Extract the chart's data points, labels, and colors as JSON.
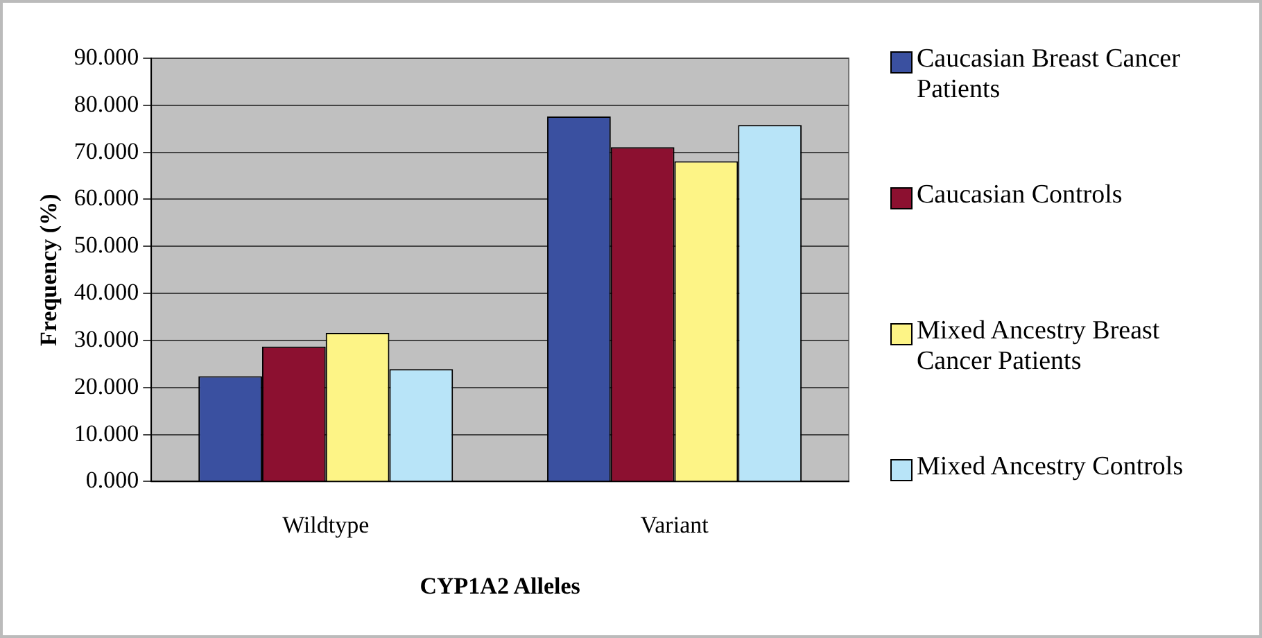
{
  "chart_data": {
    "type": "bar",
    "xlabel": "CYP1A2 Alleles",
    "ylabel": "Frequency (%)",
    "categories": [
      "Wildtype",
      "Variant"
    ],
    "series": [
      {
        "name": "Caucasian Breast Cancer Patients",
        "color": "#3a50a0",
        "values": [
          22.4,
          77.6
        ]
      },
      {
        "name": "Caucasian Controls",
        "color": "#8c1030",
        "values": [
          28.7,
          71.1
        ]
      },
      {
        "name": "Mixed Ancestry Breast Cancer Patients",
        "color": "#fdf486",
        "values": [
          31.6,
          68.1
        ]
      },
      {
        "name": "Mixed Ancestry Controls",
        "color": "#b8e4f8",
        "values": [
          23.9,
          75.8
        ]
      }
    ],
    "ylim": [
      0,
      90
    ],
    "yticks": [
      {
        "value": 0,
        "label": "0.000"
      },
      {
        "value": 10,
        "label": "10.000"
      },
      {
        "value": 20,
        "label": "20.000"
      },
      {
        "value": 30,
        "label": "30.000"
      },
      {
        "value": 40,
        "label": "40.000"
      },
      {
        "value": 50,
        "label": "50.000"
      },
      {
        "value": 60,
        "label": "60.000"
      },
      {
        "value": 70,
        "label": "70.000"
      },
      {
        "value": 80,
        "label": "80.000"
      },
      {
        "value": 90,
        "label": "90.000"
      }
    ],
    "grid": "y",
    "legend": "right"
  }
}
